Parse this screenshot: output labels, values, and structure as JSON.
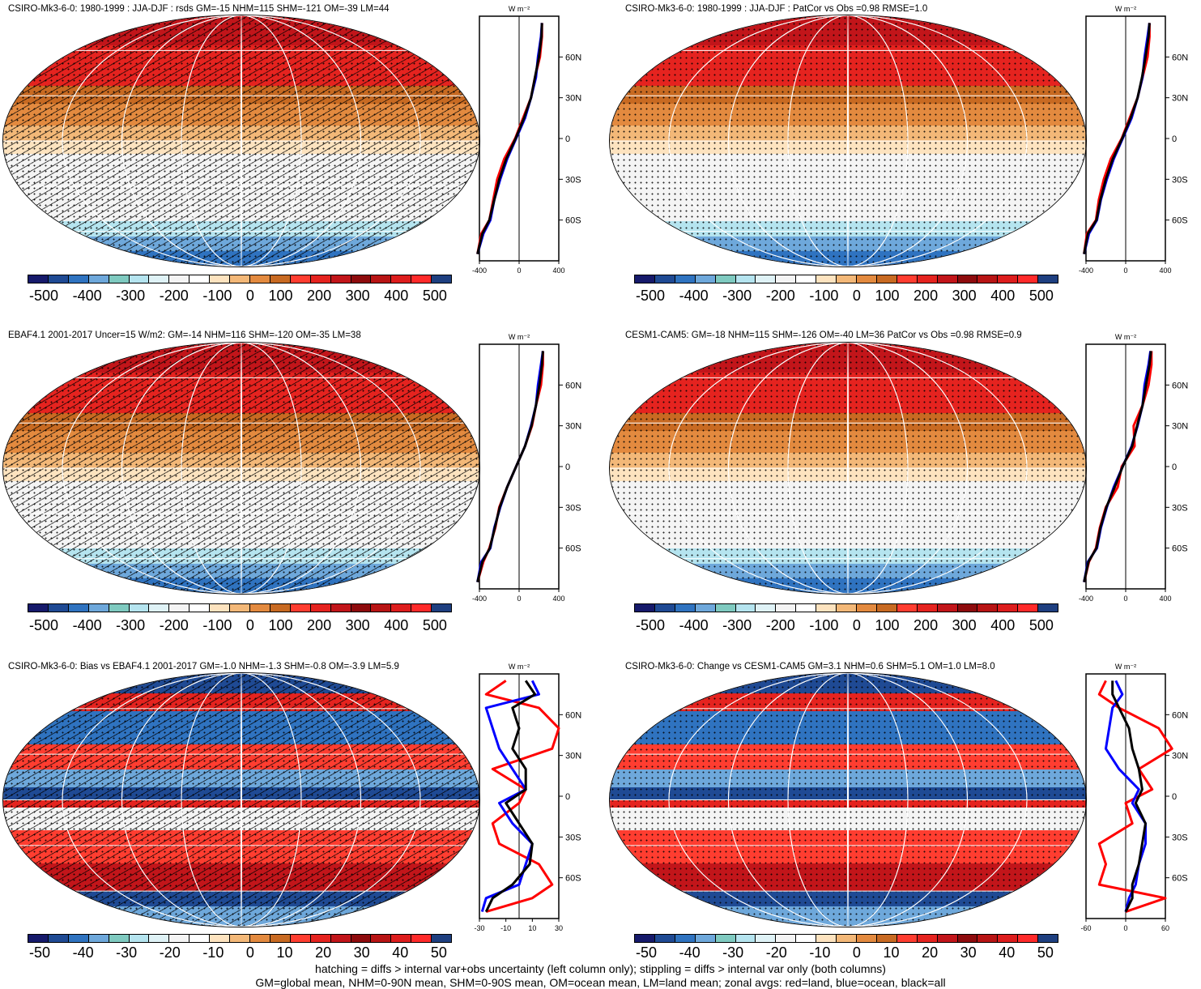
{
  "colors": {
    "scale": [
      "#161a6b",
      "#1f4a94",
      "#2f73c0",
      "#6ea8db",
      "#7fcac0",
      "#b5e4ef",
      "#dff2f6",
      "#f4f4f4",
      "#ffffff",
      "#fde3bf",
      "#f3b878",
      "#e38a3f",
      "#c86a22",
      "#ff3d30",
      "#e5231f",
      "#c2151a",
      "#8e0b0d",
      "#b81414",
      "#dd1d1d",
      "#ff2a2a",
      "#1e3f80"
    ],
    "land_line": "#ff0000",
    "ocean_line": "#0000ff",
    "all_line": "#000000"
  },
  "panels": [
    {
      "title": "CSIRO-Mk3-6-0: 1980-1999 : JJA-DJF : rsds GM=-15 NHM=115 SHM=-121 OM=-39 LM=44",
      "hatching": true,
      "colorbar_labels": [
        "-500",
        "-400",
        "-300",
        "-200",
        "-100",
        "0",
        "100",
        "200",
        "300",
        "400",
        "500"
      ],
      "zonal": {
        "units": "W m⁻²",
        "lat_labels": [
          "60N",
          "30N",
          "0",
          "30S",
          "60S"
        ],
        "x_ticks": [
          "-400",
          "0",
          "400"
        ]
      }
    },
    {
      "title": "CSIRO-Mk3-6-0: 1980-1999 : JJA-DJF : PatCor vs Obs =0.98 RMSE=1.0",
      "hatching": false,
      "colorbar_labels": [
        "-500",
        "-400",
        "-300",
        "-200",
        "-100",
        "0",
        "100",
        "200",
        "300",
        "400",
        "500"
      ],
      "zonal": {
        "units": "W m⁻²",
        "lat_labels": [
          "60N",
          "30N",
          "0",
          "30S",
          "60S"
        ],
        "x_ticks": [
          "-400",
          "0",
          "400"
        ]
      }
    },
    {
      "title": "EBAF4.1 2001-2017 Uncer=15 W/m2: GM=-14 NHM=116 SHM=-120 OM=-35 LM=38",
      "hatching": true,
      "colorbar_labels": [
        "-500",
        "-400",
        "-300",
        "-200",
        "-100",
        "0",
        "100",
        "200",
        "300",
        "400",
        "500"
      ],
      "zonal": {
        "units": "W m⁻²",
        "lat_labels": [
          "60N",
          "30N",
          "0",
          "30S",
          "60S"
        ],
        "x_ticks": [
          "-400",
          "0",
          "400"
        ]
      }
    },
    {
      "title": "CESM1-CAM5: GM=-18 NHM=115 SHM=-126 OM=-40 LM=36 PatCor vs Obs =0.98 RMSE=0.9",
      "hatching": false,
      "colorbar_labels": [
        "-500",
        "-400",
        "-300",
        "-200",
        "-100",
        "0",
        "100",
        "200",
        "300",
        "400",
        "500"
      ],
      "zonal": {
        "units": "W m⁻²",
        "lat_labels": [
          "60N",
          "30N",
          "0",
          "30S",
          "60S"
        ],
        "x_ticks": [
          "-400",
          "0",
          "400"
        ]
      }
    },
    {
      "title": "CSIRO-Mk3-6-0: Bias vs EBAF4.1 2001-2017 GM=-1.0 NHM=-1.3 SHM=-0.8 OM=-3.9 LM=5.9",
      "hatching": true,
      "colorbar_labels": [
        "-50",
        "-40",
        "-30",
        "-20",
        "-10",
        "0",
        "10",
        "20",
        "30",
        "40",
        "50"
      ],
      "zonal": {
        "units": "W m⁻²",
        "lat_labels": [
          "60N",
          "30N",
          "0",
          "30S",
          "60S"
        ],
        "x_ticks": [
          "-30",
          "-10",
          "10",
          "30"
        ]
      }
    },
    {
      "title": "CSIRO-Mk3-6-0: Change vs CESM1-CAM5 GM=3.1 NHM=0.6 SHM=5.1 OM=1.0 LM=8.0",
      "hatching": false,
      "colorbar_labels": [
        "-50",
        "-40",
        "-30",
        "-20",
        "-10",
        "0",
        "10",
        "20",
        "30",
        "40",
        "50"
      ],
      "zonal": {
        "units": "W m⁻²",
        "lat_labels": [
          "60N",
          "30N",
          "0",
          "30S",
          "60S"
        ],
        "x_ticks": [
          "-60",
          "0",
          "60"
        ]
      }
    }
  ],
  "footer": {
    "line1": "hatching = diffs > internal var+obs uncertainty (left column only); stippling = diffs > internal var only (both columns)",
    "line2": "GM=global mean, NHM=0-90N mean, SHM=0-90S mean, OM=ocean mean, LM=land mean; zonal avgs: red=land, blue=ocean, black=all"
  },
  "chart_data": [
    {
      "type": "line",
      "title": "CSIRO-Mk3-6-0: 1980-1999 : JJA-DJF : rsds GM=-15 NHM=115 SHM=-121 OM=-39 LM=44",
      "ylabel": "",
      "xlabel": "W m⁻²",
      "y": [
        -85,
        -70,
        -60,
        -45,
        -30,
        -15,
        0,
        15,
        30,
        45,
        60,
        75,
        85
      ],
      "xlim": [
        -400,
        400
      ],
      "series": [
        {
          "name": "land",
          "values": [
            -420,
            -380,
            -300,
            -260,
            -220,
            -150,
            -40,
            40,
            120,
            160,
            210,
            230,
            230
          ]
        },
        {
          "name": "ocean",
          "values": [
            -420,
            -360,
            -290,
            -250,
            -190,
            -120,
            -30,
            60,
            120,
            170,
            190,
            220,
            230
          ]
        },
        {
          "name": "all",
          "values": [
            -420,
            -370,
            -300,
            -250,
            -200,
            -130,
            -35,
            50,
            120,
            160,
            200,
            225,
            230
          ]
        }
      ]
    },
    {
      "type": "line",
      "title": "CSIRO-Mk3-6-0: 1980-1999 : JJA-DJF : PatCor vs Obs =0.98 RMSE=1.0",
      "ylabel": "",
      "xlabel": "W m⁻²",
      "y": [
        -85,
        -70,
        -60,
        -45,
        -30,
        -15,
        0,
        15,
        30,
        45,
        60,
        75,
        85
      ],
      "xlim": [
        -400,
        400
      ],
      "series": [
        {
          "name": "land",
          "values": [
            -420,
            -390,
            -300,
            -270,
            -220,
            -150,
            -40,
            40,
            120,
            170,
            220,
            240,
            240
          ]
        },
        {
          "name": "ocean",
          "values": [
            -420,
            -370,
            -290,
            -250,
            -190,
            -120,
            -30,
            60,
            120,
            170,
            190,
            220,
            240
          ]
        },
        {
          "name": "all",
          "values": [
            -420,
            -380,
            -295,
            -255,
            -200,
            -130,
            -35,
            50,
            120,
            165,
            200,
            230,
            240
          ]
        }
      ]
    },
    {
      "type": "line",
      "title": "EBAF4.1 2001-2017 Uncer=15 W/m2: GM=-14 NHM=116 SHM=-120 OM=-35 LM=38",
      "ylabel": "",
      "xlabel": "W m⁻²",
      "y": [
        -85,
        -70,
        -60,
        -45,
        -30,
        -15,
        0,
        15,
        30,
        45,
        60,
        75,
        85
      ],
      "xlim": [
        -400,
        400
      ],
      "series": [
        {
          "name": "land",
          "values": [
            -420,
            -360,
            -300,
            -240,
            -200,
            -120,
            -30,
            60,
            130,
            170,
            220,
            240,
            240
          ]
        },
        {
          "name": "ocean",
          "values": [
            -420,
            -380,
            -290,
            -250,
            -190,
            -120,
            -30,
            60,
            120,
            170,
            190,
            220,
            240
          ]
        },
        {
          "name": "all",
          "values": [
            -420,
            -370,
            -295,
            -245,
            -195,
            -120,
            -30,
            60,
            125,
            170,
            205,
            230,
            240
          ]
        }
      ]
    },
    {
      "type": "line",
      "title": "CESM1-CAM5: GM=-18 NHM=115 SHM=-126 OM=-40 LM=36 PatCor vs Obs =0.98 RMSE=0.9",
      "ylabel": "",
      "xlabel": "W m⁻²",
      "y": [
        -85,
        -70,
        -60,
        -45,
        -30,
        -15,
        0,
        15,
        30,
        45,
        60,
        75,
        85
      ],
      "xlim": [
        -400,
        400
      ],
      "series": [
        {
          "name": "land",
          "values": [
            -420,
            -370,
            -300,
            -260,
            -200,
            -80,
            -40,
            90,
            80,
            170,
            230,
            260,
            260
          ]
        },
        {
          "name": "ocean",
          "values": [
            -420,
            -380,
            -290,
            -250,
            -190,
            -120,
            -30,
            60,
            120,
            170,
            190,
            230,
            250
          ]
        },
        {
          "name": "all",
          "values": [
            -420,
            -375,
            -295,
            -255,
            -195,
            -110,
            -30,
            65,
            115,
            170,
            205,
            240,
            255
          ]
        }
      ]
    },
    {
      "type": "line",
      "title": "CSIRO-Mk3-6-0: Bias vs EBAF4.1 2001-2017 GM=-1.0 NHM=-1.3 SHM=-0.8 OM=-3.9 LM=5.9",
      "ylabel": "",
      "xlabel": "W m⁻²",
      "y": [
        -85,
        -75,
        -65,
        -50,
        -35,
        -20,
        -5,
        5,
        20,
        35,
        50,
        65,
        75,
        85
      ],
      "xlim": [
        -30,
        30
      ],
      "series": [
        {
          "name": "land",
          "values": [
            -25,
            10,
            25,
            15,
            -15,
            -20,
            0,
            5,
            -20,
            25,
            30,
            15,
            -25,
            -10
          ]
        },
        {
          "name": "ocean",
          "values": [
            -28,
            -25,
            0,
            5,
            10,
            -5,
            -15,
            5,
            -5,
            -15,
            -20,
            -25,
            15,
            10
          ]
        },
        {
          "name": "all",
          "values": [
            -25,
            -20,
            -5,
            8,
            10,
            0,
            -10,
            5,
            5,
            -5,
            0,
            -5,
            12,
            5
          ]
        }
      ]
    },
    {
      "type": "line",
      "title": "CSIRO-Mk3-6-0: Change vs CESM1-CAM5 GM=3.1 NHM=0.6 SHM=5.1 OM=1.0 LM=8.0",
      "ylabel": "",
      "xlabel": "W m⁻²",
      "y": [
        -85,
        -75,
        -65,
        -50,
        -35,
        -20,
        -5,
        5,
        20,
        35,
        50,
        65,
        75,
        85
      ],
      "xlim": [
        -60,
        60
      ],
      "series": [
        {
          "name": "land",
          "values": [
            0,
            60,
            -40,
            -30,
            -40,
            10,
            0,
            40,
            20,
            70,
            50,
            -10,
            -40,
            -30
          ]
        },
        {
          "name": "ocean",
          "values": [
            0,
            5,
            15,
            20,
            30,
            30,
            10,
            20,
            -10,
            -30,
            -25,
            -20,
            -5,
            -15
          ]
        },
        {
          "name": "all",
          "values": [
            0,
            10,
            10,
            20,
            25,
            30,
            15,
            25,
            20,
            10,
            5,
            -10,
            -20,
            -20
          ]
        }
      ]
    }
  ]
}
